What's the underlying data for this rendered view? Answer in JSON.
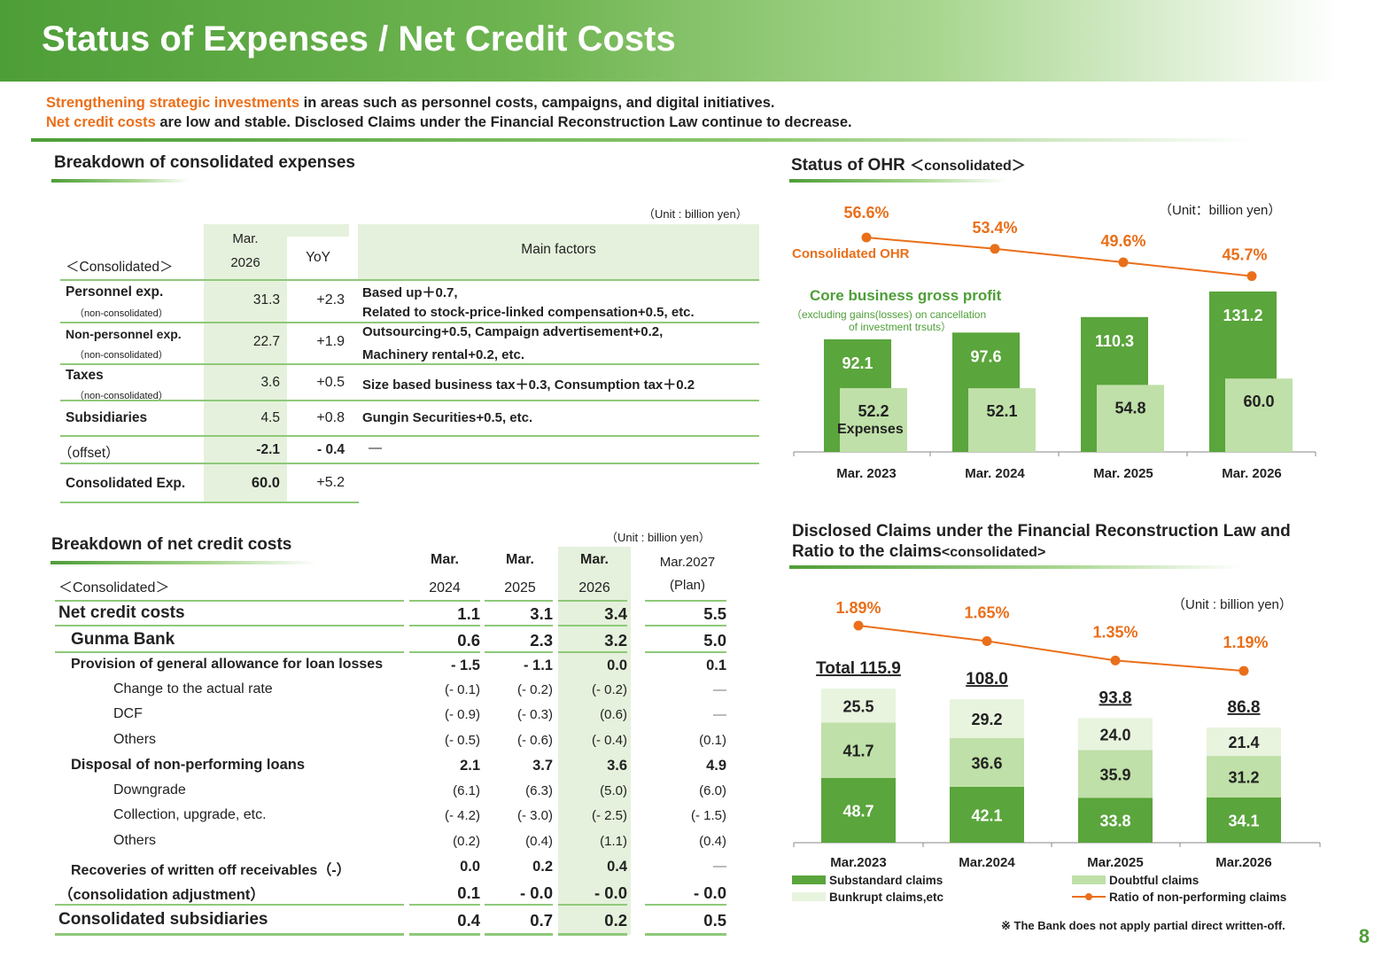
{
  "title": "Status of Expenses / Net Credit Costs",
  "lead": {
    "line1_hl": "Strengthening strategic investments",
    "line1_rest": " in areas such as personnel costs, campaigns, and digital initiatives.",
    "line2_hl": "Net credit costs",
    "line2_rest": " are low and stable. Disclosed Claims under the Financial Reconstruction Law continue to decrease."
  },
  "expenses": {
    "section": "Breakdown of consolidated expenses",
    "unit": "（Unit : billion yen）",
    "head": {
      "label": "＜Consolidated＞",
      "mar": "Mar.",
      "year": "2026",
      "yoy": "YoY",
      "factors": "Main factors"
    },
    "rows": [
      {
        "name": "Personnel exp.",
        "sub": "（non-consolidated）",
        "val": "31.3",
        "yoy": "+2.3",
        "f1": "Based up＋0.7,",
        "f2": "Related to stock-price-linked compensation+0.5, etc."
      },
      {
        "name": "Non-personnel exp.",
        "sub": "（non-consolidated）",
        "val": "22.7",
        "yoy": "+1.9",
        "f1": "Outsourcing+0.5, Campaign advertisement+0.2,",
        "f2": "Machinery rental+0.2, etc."
      },
      {
        "name": "Taxes",
        "sub": "（non-consolidated）",
        "val": "3.6",
        "yoy": "+0.5",
        "f1": "Size based business tax＋0.3, Consumption tax＋0.2",
        "f2": ""
      },
      {
        "name": "Subsidiaries",
        "sub": "",
        "val": "4.5",
        "yoy": "+0.8",
        "f1": "Gungin Securities+0.5, etc.",
        "f2": ""
      },
      {
        "name": "（offset）",
        "sub": "",
        "val": "-2.1",
        "yoy": "- 0.4",
        "f1": "―",
        "f2": ""
      },
      {
        "name": "Consolidated Exp.",
        "sub": "",
        "val": "60.0",
        "yoy": "+5.2",
        "f1": "",
        "f2": ""
      }
    ]
  },
  "ohr": {
    "section": "Status of OHR",
    "section_small": "＜consolidated＞",
    "unit": "（Unit：billion yen）",
    "ohr_label": "Consolidated OHR",
    "core_label": "Core business gross profit",
    "core_sub1": "（excluding gains(losses) on cancellation",
    "core_sub2": "of investment trsuts）",
    "exp_label": "Expenses",
    "chart_data": {
      "type": "bar",
      "categories": [
        "Mar. 2023",
        "Mar. 2024",
        "Mar. 2025",
        "Mar. 2026"
      ],
      "series": [
        {
          "name": "Core business gross profit",
          "values": [
            92.1,
            97.6,
            110.3,
            131.2
          ],
          "color": "#5aa53c"
        },
        {
          "name": "Expenses",
          "values": [
            52.2,
            52.1,
            54.8,
            60.0
          ],
          "color": "#bfe0a8"
        },
        {
          "name": "Consolidated OHR",
          "values": [
            56.6,
            53.4,
            49.6,
            45.7
          ],
          "labels": [
            "56.6%",
            "53.4%",
            "49.6%",
            "45.7%"
          ],
          "color": "#ea6f1a"
        }
      ],
      "ylim": [
        0,
        135
      ]
    }
  },
  "credit": {
    "section": "Breakdown of net credit costs",
    "unit": "（Unit : billion yen）",
    "head": {
      "label": "＜Consolidated＞",
      "c1a": "Mar.",
      "c1b": "2024",
      "c2a": "Mar.",
      "c2b": "2025",
      "c3a": "Mar.",
      "c3b": "2026",
      "c4a": "Mar.2027",
      "c4b": "(Plan)"
    },
    "rows": [
      {
        "name": "Net credit costs",
        "v": [
          "1.1",
          "3.1",
          "3.4",
          "5.5"
        ]
      },
      {
        "name": "Gunma Bank",
        "v": [
          "0.6",
          "2.3",
          "3.2",
          "5.0"
        ]
      },
      {
        "name": "Provision of general allowance for loan losses",
        "v": [
          "- 1.5",
          "- 1.1",
          "0.0",
          "0.1"
        ]
      },
      {
        "name": "Change to the actual rate",
        "v": [
          "(- 0.1)",
          "(- 0.2)",
          "(- 0.2)",
          "―"
        ]
      },
      {
        "name": "DCF",
        "v": [
          "(- 0.9)",
          "(- 0.3)",
          "(0.6)",
          "―"
        ]
      },
      {
        "name": "Others",
        "v": [
          "(- 0.5)",
          "(- 0.6)",
          "(- 0.4)",
          "(0.1)"
        ]
      },
      {
        "name": "Disposal of non-performing loans",
        "v": [
          "2.1",
          "3.7",
          "3.6",
          "4.9"
        ]
      },
      {
        "name": "Downgrade",
        "v": [
          "(6.1)",
          "(6.3)",
          "(5.0)",
          "(6.0)"
        ]
      },
      {
        "name": "Collection, upgrade, etc.",
        "v": [
          "(- 4.2)",
          "(- 3.0)",
          "(- 2.5)",
          "(- 1.5)"
        ]
      },
      {
        "name": "Others",
        "v": [
          "(0.2)",
          "(0.4)",
          "(1.1)",
          "(0.4)"
        ]
      },
      {
        "name": "Recoveries of written off receivables（-）",
        "v": [
          "0.0",
          "0.2",
          "0.4",
          "―"
        ]
      },
      {
        "name": "（consolidation adjustment）",
        "v": [
          "0.1",
          "- 0.0",
          "- 0.0",
          "- 0.0"
        ]
      },
      {
        "name": "Consolidated subsidiaries",
        "v": [
          "0.4",
          "0.7",
          "0.2",
          "0.5"
        ]
      }
    ]
  },
  "claims": {
    "section1": "Disclosed Claims under the Financial Reconstruction Law and",
    "section2": "Ratio to the claims",
    "section_small": "<consolidated>",
    "unit": "（Unit : billion yen）",
    "note": "※ The Bank does not apply partial direct written-off.",
    "total_labels": [
      "Total 115.9",
      "108.0",
      "93.8",
      "86.8"
    ],
    "chart_data": {
      "type": "bar",
      "categories": [
        "Mar.2023",
        "Mar.2024",
        "Mar.2025",
        "Mar.2026"
      ],
      "series": [
        {
          "name": "Substandard claims",
          "values": [
            48.7,
            42.1,
            33.8,
            34.1
          ],
          "color": "#5aa53c"
        },
        {
          "name": "Doubtful claims",
          "values": [
            41.7,
            36.6,
            35.9,
            31.2
          ],
          "color": "#bfe0a8"
        },
        {
          "name": "Bunkrupt claims,etc",
          "values": [
            25.5,
            29.2,
            24.0,
            21.4
          ],
          "color": "#e8f4de"
        },
        {
          "name": "Ratio of non-performing claims",
          "values": [
            1.89,
            1.65,
            1.35,
            1.19
          ],
          "labels": [
            "1.89%",
            "1.65%",
            "1.35%",
            "1.19%"
          ],
          "color": "#ea6f1a"
        }
      ],
      "totals": [
        115.9,
        108.0,
        93.8,
        86.8
      ]
    }
  },
  "page_number": "8"
}
